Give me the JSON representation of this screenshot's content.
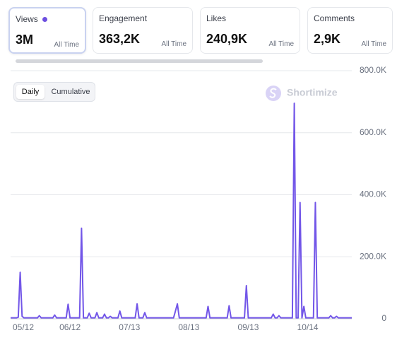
{
  "cards": [
    {
      "title": "Views",
      "value": "3M",
      "period": "All Time"
    },
    {
      "title": "Engagement",
      "value": "363,2K",
      "period": "All Time"
    },
    {
      "title": "Likes",
      "value": "240,9K",
      "period": "All Time"
    },
    {
      "title": "Comments",
      "value": "2,9K",
      "period": "All Time"
    }
  ],
  "tabs": [
    "Daily",
    "Cumulative"
  ],
  "watermark": "Shortimize",
  "chart_data": {
    "type": "line",
    "color": "#7256e8",
    "grid": true,
    "ylim": [
      0,
      800000
    ],
    "yticks": [
      {
        "value": 0,
        "label": "0"
      },
      {
        "value": 200000,
        "label": "200.0K"
      },
      {
        "value": 400000,
        "label": "400.0K"
      },
      {
        "value": 600000,
        "label": "600.0K"
      },
      {
        "value": 800000,
        "label": "800.0K"
      }
    ],
    "categories": [
      "05/12",
      null,
      null,
      null,
      null,
      null,
      null,
      null,
      null,
      null,
      null,
      null,
      null,
      null,
      null,
      null,
      null,
      null,
      null,
      null,
      null,
      null,
      null,
      null,
      null,
      null,
      null,
      null,
      null,
      null,
      null,
      "06/12",
      null,
      null,
      null,
      null,
      null,
      null,
      null,
      null,
      null,
      null,
      null,
      null,
      null,
      null,
      null,
      null,
      null,
      null,
      null,
      null,
      null,
      null,
      null,
      null,
      null,
      null,
      null,
      null,
      null,
      null,
      "07/13",
      null,
      null,
      null,
      null,
      null,
      null,
      null,
      null,
      null,
      null,
      null,
      null,
      null,
      null,
      null,
      null,
      null,
      null,
      null,
      null,
      null,
      null,
      null,
      null,
      null,
      null,
      null,
      null,
      null,
      null,
      "08/13",
      null,
      null,
      null,
      null,
      null,
      null,
      null,
      null,
      null,
      null,
      null,
      null,
      null,
      null,
      null,
      null,
      null,
      null,
      null,
      null,
      null,
      null,
      null,
      null,
      null,
      null,
      null,
      null,
      null,
      null,
      "09/13",
      null,
      null,
      null,
      null,
      null,
      null,
      null,
      null,
      null,
      null,
      null,
      null,
      null,
      null,
      null,
      null,
      null,
      null,
      null,
      null,
      null,
      null,
      null,
      null,
      null,
      null,
      null,
      null,
      null,
      null,
      "10/14",
      null,
      null,
      null,
      null,
      null,
      null,
      null,
      null,
      null,
      null,
      null,
      null,
      null,
      null,
      null,
      null,
      null,
      null,
      null,
      null,
      null,
      null,
      null
    ],
    "series": [
      {
        "name": "Views",
        "color": "#7256e8",
        "values": [
          3000,
          3000,
          3000,
          3000,
          5000,
          150000,
          8000,
          3000,
          3000,
          3000,
          3000,
          3000,
          3000,
          3000,
          3000,
          10000,
          3000,
          3000,
          3000,
          3000,
          3000,
          3000,
          3000,
          12000,
          3000,
          3000,
          3000,
          3000,
          3000,
          3000,
          47000,
          3000,
          3000,
          3000,
          3000,
          3000,
          3000,
          292000,
          3000,
          3000,
          3000,
          18000,
          3000,
          3000,
          3000,
          20000,
          3000,
          3000,
          3000,
          15000,
          3000,
          3000,
          8000,
          3000,
          3000,
          3000,
          3000,
          25000,
          3000,
          3000,
          3000,
          3000,
          3000,
          3000,
          3000,
          3000,
          48000,
          3000,
          3000,
          3000,
          20000,
          3000,
          3000,
          3000,
          3000,
          3000,
          3000,
          3000,
          3000,
          3000,
          3000,
          3000,
          3000,
          3000,
          3000,
          3000,
          25000,
          48000,
          3000,
          3000,
          3000,
          3000,
          3000,
          3000,
          3000,
          3000,
          3000,
          3000,
          3000,
          3000,
          3000,
          3000,
          3000,
          40000,
          3000,
          3000,
          3000,
          3000,
          3000,
          3000,
          3000,
          3000,
          3000,
          3000,
          42000,
          3000,
          3000,
          3000,
          3000,
          3000,
          3000,
          3000,
          3000,
          107000,
          3000,
          3000,
          3000,
          3000,
          3000,
          3000,
          3000,
          3000,
          3000,
          3000,
          3000,
          3000,
          3000,
          15000,
          3000,
          3000,
          10000,
          3000,
          3000,
          3000,
          3000,
          3000,
          3000,
          3000,
          695000,
          3000,
          3000,
          375000,
          3000,
          40000,
          3000,
          3000,
          3000,
          3000,
          3000,
          375000,
          3000,
          3000,
          3000,
          3000,
          3000,
          3000,
          3000,
          10000,
          3000,
          3000,
          8000,
          3000,
          3000,
          3000,
          3000,
          3000,
          3000,
          3000,
          3000
        ]
      }
    ]
  }
}
